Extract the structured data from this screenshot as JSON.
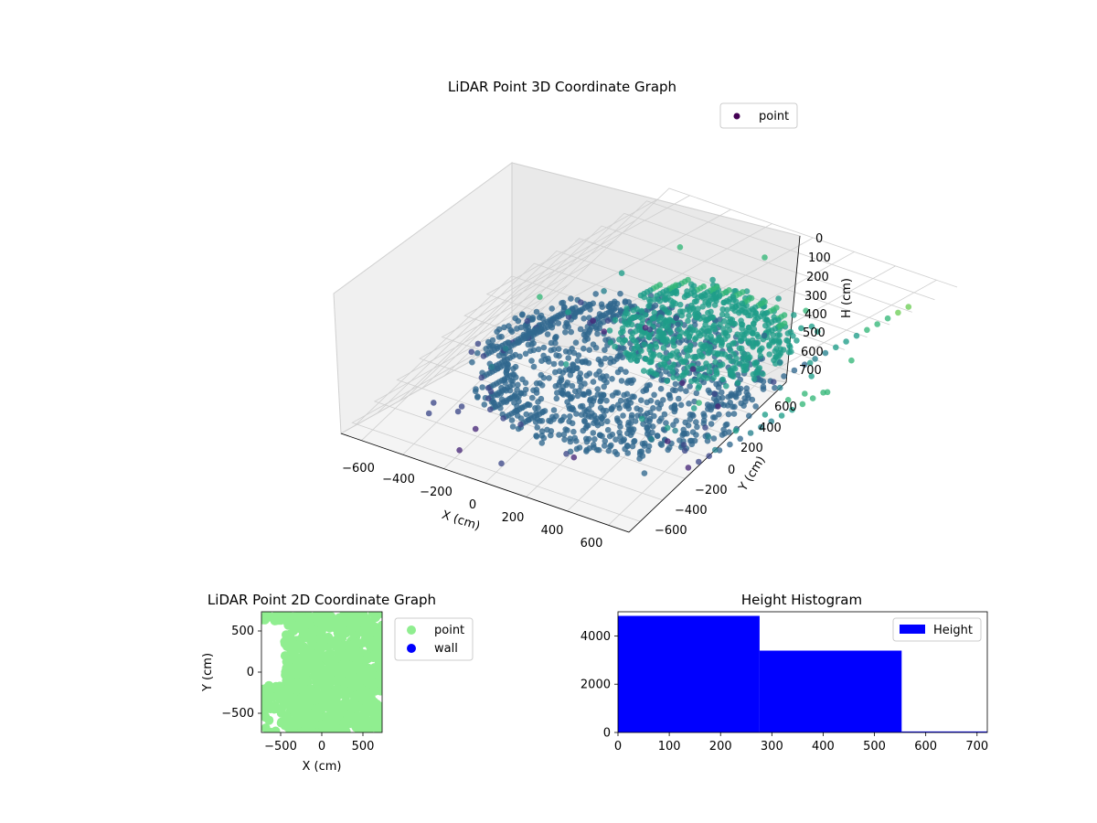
{
  "colors": {
    "viridis": [
      "#440154",
      "#482878",
      "#3e4989",
      "#31688e",
      "#26828e",
      "#1f9e89",
      "#35b779",
      "#6ece58",
      "#b5de2b",
      "#fde725"
    ],
    "point2d": "#90ee90",
    "wall": "#0000ff",
    "hist": "#0000ff",
    "legend_point3d": "#440154"
  },
  "chart_data": [
    {
      "type": "scatter",
      "projection": "3d",
      "title": "LiDAR Point 3D Coordinate Graph",
      "xlabel": "X (cm)",
      "ylabel": "Y (cm)",
      "zlabel": "H (cm)",
      "xlim": [
        -700,
        700
      ],
      "ylim": [
        -700,
        700
      ],
      "zlim": [
        760,
        0
      ],
      "xticks": [
        "−600",
        "−400",
        "−200",
        "0",
        "200",
        "400",
        "600"
      ],
      "yticks": [
        "−600",
        "−400",
        "−200",
        "0",
        "200",
        "400",
        "600"
      ],
      "zticks": [
        "0",
        "100",
        "200",
        "300",
        "400",
        "500",
        "600",
        "700"
      ],
      "legend": [
        "point"
      ],
      "legend_position": "upper right",
      "grid": true,
      "colormap": "viridis (by height)",
      "series": [
        {
          "name": "point",
          "shape": "lower disc",
          "radius": [
            0,
            620
          ],
          "height": 560
        },
        {
          "name": "point",
          "shape": "upper disc",
          "radius": [
            0,
            380
          ],
          "height": 250
        },
        {
          "name": "point",
          "shape": "vertical column",
          "position": [
            600,
            450
          ],
          "heights": [
            0,
            600
          ]
        },
        {
          "name": "point",
          "shape": "vertical column",
          "position": [
            650,
            -200
          ],
          "heights": [
            100,
            700
          ]
        }
      ]
    },
    {
      "type": "scatter",
      "title": "LiDAR Point 2D Coordinate Graph",
      "xlabel": "X (cm)",
      "ylabel": "Y (cm)",
      "xlim": [
        -730,
        730
      ],
      "ylim": [
        -730,
        730
      ],
      "xticks": [
        "−500",
        "0",
        "500"
      ],
      "yticks": [
        "−500",
        "0",
        "500"
      ],
      "legend": [
        "point",
        "wall"
      ],
      "legend_position": "outside right",
      "grid": false,
      "series": [
        {
          "name": "point",
          "coverage": "dense, nearly full square with gaps at top-left and lower-left"
        },
        {
          "name": "wall",
          "count": 0
        }
      ]
    },
    {
      "type": "bar",
      "subtype": "histogram",
      "title": "Height Histogram",
      "xlim": [
        0,
        720
      ],
      "ylim": [
        0,
        5000
      ],
      "xticks": [
        "0",
        "100",
        "200",
        "300",
        "400",
        "500",
        "600",
        "700"
      ],
      "yticks": [
        "0",
        "2000",
        "4000"
      ],
      "legend": [
        "Height"
      ],
      "legend_position": "upper right",
      "grid": false,
      "series": [
        {
          "name": "Height",
          "bin_edges": [
            0,
            276,
            553,
            720
          ],
          "values": [
            4830,
            3390,
            40
          ]
        }
      ]
    }
  ]
}
